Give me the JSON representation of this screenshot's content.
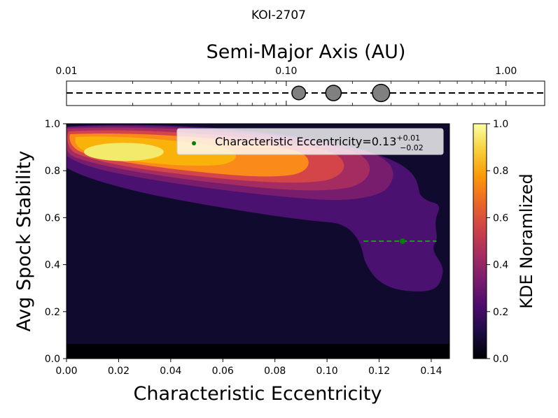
{
  "chart_data": [
    {
      "type": "scatter",
      "panel": "orbit-panel",
      "suptitle": "KOI-2707",
      "xlabel": "Semi-Major Axis (AU)",
      "xscale": "log",
      "xlim": [
        0.01,
        1.5
      ],
      "xticks": [
        0.01,
        0.1,
        1.0
      ],
      "xtick_labels": [
        "0.01",
        "0.10",
        "1.00"
      ],
      "planets": [
        {
          "a": 0.114,
          "relative_size": 0.75
        },
        {
          "a": 0.164,
          "relative_size": 0.85
        },
        {
          "a": 0.27,
          "relative_size": 0.95
        }
      ]
    },
    {
      "type": "heatmap",
      "panel": "kde-panel",
      "xlabel": "Characteristic Eccentricity",
      "ylabel": "Avg Spock Stability",
      "xlim": [
        0.0,
        0.147
      ],
      "ylim": [
        0.0,
        1.0
      ],
      "xticks": [
        0.0,
        0.02,
        0.04,
        0.06,
        0.08,
        0.1,
        0.12,
        0.14
      ],
      "xtick_labels": [
        "0.00",
        "0.02",
        "0.04",
        "0.06",
        "0.08",
        "0.10",
        "0.12",
        "0.14"
      ],
      "yticks": [
        0.0,
        0.2,
        0.4,
        0.6,
        0.8,
        1.0
      ],
      "ytick_labels": [
        "0.0",
        "0.2",
        "0.4",
        "0.6",
        "0.8",
        "1.0"
      ],
      "colorbar": {
        "label": "KDE Noramlized",
        "range": [
          0.0,
          1.0
        ],
        "ticks": [
          "0.0",
          "0.2",
          "0.4",
          "0.6",
          "0.8",
          "1.0"
        ],
        "colors": [
          "#000004",
          "#1b0c41",
          "#4a0c6b",
          "#781c6d",
          "#a52c60",
          "#cf4446",
          "#ed6925",
          "#fb9b06",
          "#f7d13d",
          "#fcffa4"
        ]
      },
      "kde_peak": {
        "x": 0.022,
        "y": 0.88
      },
      "marker": {
        "x": 0.129,
        "x_err_plus": 0.013,
        "x_err_minus": 0.015,
        "y": 0.5,
        "color": "#008000"
      },
      "legend": {
        "location": "upper right",
        "label_prefix": "Characteristic Eccentricity=0.13",
        "sup": "+0.01",
        "sub": "−0.02"
      }
    }
  ]
}
